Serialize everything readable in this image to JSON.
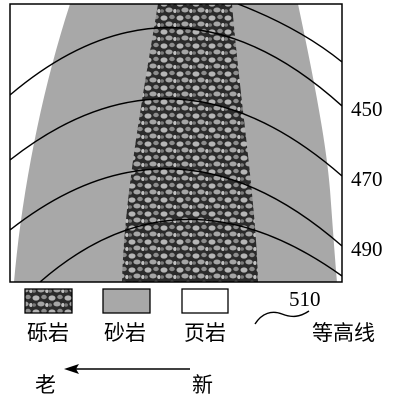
{
  "contour_labels": {
    "c450": "450",
    "c470": "470",
    "c490": "490"
  },
  "legend": {
    "conglomerate": "砾岩",
    "sandstone": "砂岩",
    "shale": "页岩",
    "contour_value": "510",
    "contour": "等高线"
  },
  "age_arrow": {
    "old": "老",
    "new": "新",
    "icon": "arrow-left-icon"
  },
  "colors": {
    "sandstone": "#a8a8a8",
    "shale": "#ffffff",
    "conglomerate_base": "#2b2b2b",
    "line": "#000000"
  }
}
